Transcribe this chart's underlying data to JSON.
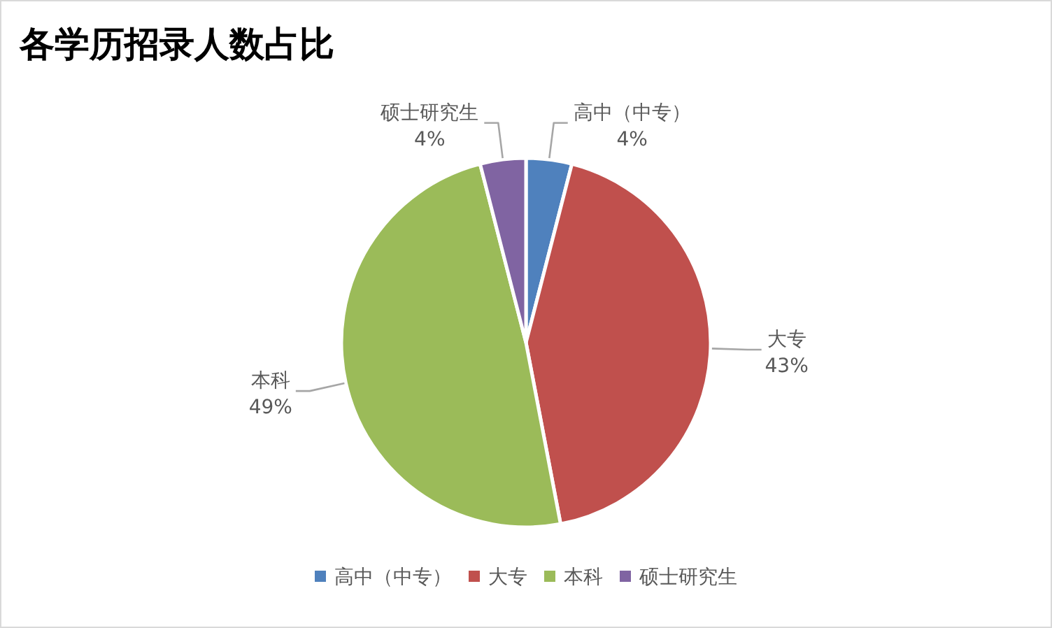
{
  "chart_data": {
    "type": "pie",
    "title": "各学历招录人数占比",
    "categories": [
      "高中（中专）",
      "大专",
      "本科",
      "硕士研究生"
    ],
    "values": [
      4,
      43,
      49,
      4
    ],
    "value_labels": [
      "4%",
      "43%",
      "49%",
      "4%"
    ],
    "colors": [
      "#4f81bd",
      "#c0504d",
      "#9bbb59",
      "#8064a2"
    ],
    "legend": "bottom"
  }
}
